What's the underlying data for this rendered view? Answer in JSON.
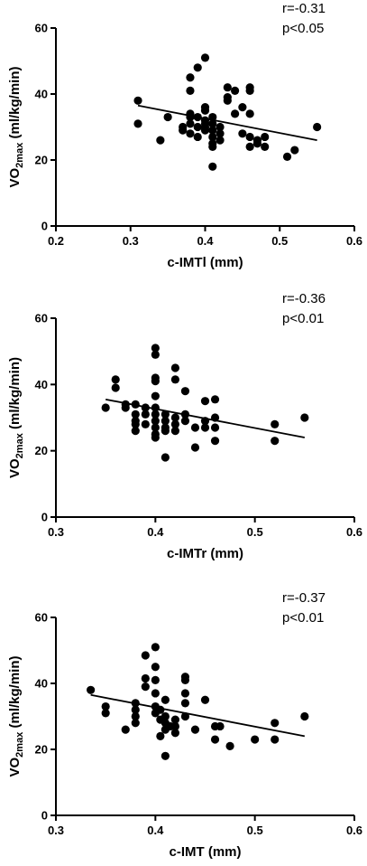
{
  "chart_data": [
    {
      "type": "scatter",
      "xlabel": "c-IMTl (mm)",
      "ylabel_base": "VO",
      "ylabel_sub": "2max",
      "ylabel_rest": " (ml/kg/min)",
      "xlim": [
        0.2,
        0.6
      ],
      "ylim": [
        0,
        60
      ],
      "xticks": [
        0.2,
        0.3,
        0.4,
        0.5,
        0.6
      ],
      "xtick_labels": [
        "0.2",
        "0.3",
        "0.4",
        "0.5",
        "0.6"
      ],
      "yticks": [
        0,
        20,
        40,
        60
      ],
      "ytick_labels": [
        "0",
        "20",
        "40",
        "60"
      ],
      "annotation": [
        "r=-0.31",
        "p<0.05"
      ],
      "fit_line": [
        [
          0.31,
          36.5
        ],
        [
          0.55,
          26.0
        ]
      ],
      "points": [
        [
          0.31,
          38
        ],
        [
          0.31,
          31
        ],
        [
          0.34,
          26
        ],
        [
          0.35,
          33
        ],
        [
          0.37,
          30
        ],
        [
          0.37,
          29
        ],
        [
          0.38,
          45
        ],
        [
          0.38,
          41
        ],
        [
          0.38,
          34
        ],
        [
          0.38,
          33
        ],
        [
          0.38,
          31
        ],
        [
          0.38,
          28
        ],
        [
          0.39,
          48
        ],
        [
          0.39,
          33
        ],
        [
          0.39,
          30
        ],
        [
          0.39,
          27
        ],
        [
          0.4,
          51
        ],
        [
          0.4,
          36
        ],
        [
          0.4,
          35
        ],
        [
          0.4,
          32
        ],
        [
          0.4,
          31
        ],
        [
          0.4,
          30
        ],
        [
          0.4,
          29
        ],
        [
          0.41,
          33
        ],
        [
          0.41,
          31
        ],
        [
          0.41,
          29
        ],
        [
          0.41,
          27
        ],
        [
          0.41,
          25
        ],
        [
          0.41,
          24
        ],
        [
          0.41,
          18
        ],
        [
          0.42,
          30
        ],
        [
          0.42,
          28
        ],
        [
          0.42,
          26
        ],
        [
          0.43,
          42
        ],
        [
          0.43,
          39
        ],
        [
          0.43,
          38
        ],
        [
          0.44,
          34
        ],
        [
          0.44,
          41
        ],
        [
          0.45,
          36
        ],
        [
          0.45,
          28
        ],
        [
          0.46,
          42
        ],
        [
          0.46,
          41
        ],
        [
          0.46,
          34
        ],
        [
          0.46,
          27
        ],
        [
          0.46,
          24
        ],
        [
          0.47,
          26
        ],
        [
          0.47,
          25
        ],
        [
          0.48,
          27
        ],
        [
          0.48,
          24
        ],
        [
          0.51,
          21
        ],
        [
          0.52,
          23
        ],
        [
          0.55,
          30
        ]
      ]
    },
    {
      "type": "scatter",
      "xlabel": "c-IMTr (mm)",
      "ylabel_base": "VO",
      "ylabel_sub": "2max",
      "ylabel_rest": " (ml/kg/min)",
      "xlim": [
        0.3,
        0.6
      ],
      "ylim": [
        0,
        60
      ],
      "xticks": [
        0.3,
        0.4,
        0.5,
        0.6
      ],
      "xtick_labels": [
        "0.3",
        "0.4",
        "0.5",
        "0.6"
      ],
      "yticks": [
        0,
        20,
        40,
        60
      ],
      "ytick_labels": [
        "0",
        "20",
        "40",
        "60"
      ],
      "annotation": [
        "r=-0.36",
        "p<0.01"
      ],
      "fit_line": [
        [
          0.35,
          35.5
        ],
        [
          0.55,
          24.0
        ]
      ],
      "points": [
        [
          0.35,
          33
        ],
        [
          0.36,
          41.5
        ],
        [
          0.36,
          39
        ],
        [
          0.37,
          34
        ],
        [
          0.37,
          33
        ],
        [
          0.38,
          34
        ],
        [
          0.38,
          31
        ],
        [
          0.38,
          29
        ],
        [
          0.38,
          28
        ],
        [
          0.38,
          26
        ],
        [
          0.39,
          33
        ],
        [
          0.39,
          31
        ],
        [
          0.39,
          28
        ],
        [
          0.4,
          51
        ],
        [
          0.4,
          49
        ],
        [
          0.4,
          42
        ],
        [
          0.4,
          41
        ],
        [
          0.4,
          36.5
        ],
        [
          0.4,
          33
        ],
        [
          0.4,
          31
        ],
        [
          0.4,
          29
        ],
        [
          0.4,
          27
        ],
        [
          0.4,
          25
        ],
        [
          0.4,
          24
        ],
        [
          0.41,
          31
        ],
        [
          0.41,
          29
        ],
        [
          0.41,
          27
        ],
        [
          0.41,
          26
        ],
        [
          0.41,
          18
        ],
        [
          0.42,
          45
        ],
        [
          0.42,
          41.5
        ],
        [
          0.42,
          30
        ],
        [
          0.42,
          28
        ],
        [
          0.42,
          26
        ],
        [
          0.43,
          38
        ],
        [
          0.43,
          31
        ],
        [
          0.43,
          29
        ],
        [
          0.44,
          27
        ],
        [
          0.44,
          21
        ],
        [
          0.45,
          35
        ],
        [
          0.45,
          29
        ],
        [
          0.45,
          27
        ],
        [
          0.46,
          35.5
        ],
        [
          0.46,
          30
        ],
        [
          0.46,
          27
        ],
        [
          0.46,
          23
        ],
        [
          0.52,
          28
        ],
        [
          0.52,
          23
        ],
        [
          0.55,
          30
        ]
      ]
    },
    {
      "type": "scatter",
      "xlabel": "c-IMT (mm)",
      "ylabel_base": "VO",
      "ylabel_sub": "2max",
      "ylabel_rest": " (ml/kg/min)",
      "xlim": [
        0.3,
        0.6
      ],
      "ylim": [
        0,
        60
      ],
      "xticks": [
        0.3,
        0.4,
        0.5,
        0.6
      ],
      "xtick_labels": [
        "0.3",
        "0.4",
        "0.5",
        "0.6"
      ],
      "yticks": [
        0,
        20,
        40,
        60
      ],
      "ytick_labels": [
        "0",
        "20",
        "40",
        "60"
      ],
      "annotation": [
        "r=-0.37",
        "p<0.01"
      ],
      "fit_line": [
        [
          0.335,
          36.5
        ],
        [
          0.55,
          24.0
        ]
      ],
      "points": [
        [
          0.335,
          38
        ],
        [
          0.35,
          33
        ],
        [
          0.35,
          31
        ],
        [
          0.37,
          26
        ],
        [
          0.38,
          34
        ],
        [
          0.38,
          32
        ],
        [
          0.38,
          30
        ],
        [
          0.38,
          28
        ],
        [
          0.39,
          48.5
        ],
        [
          0.39,
          41.5
        ],
        [
          0.39,
          39
        ],
        [
          0.4,
          51
        ],
        [
          0.4,
          45
        ],
        [
          0.4,
          41
        ],
        [
          0.4,
          37
        ],
        [
          0.4,
          33
        ],
        [
          0.4,
          31
        ],
        [
          0.405,
          32
        ],
        [
          0.405,
          29
        ],
        [
          0.405,
          24
        ],
        [
          0.41,
          35
        ],
        [
          0.41,
          30
        ],
        [
          0.41,
          28
        ],
        [
          0.41,
          26
        ],
        [
          0.41,
          18
        ],
        [
          0.415,
          27
        ],
        [
          0.42,
          29
        ],
        [
          0.42,
          27
        ],
        [
          0.42,
          25
        ],
        [
          0.43,
          42
        ],
        [
          0.43,
          41
        ],
        [
          0.43,
          37
        ],
        [
          0.43,
          34
        ],
        [
          0.43,
          30
        ],
        [
          0.44,
          26
        ],
        [
          0.45,
          35
        ],
        [
          0.46,
          27
        ],
        [
          0.46,
          23
        ],
        [
          0.465,
          27
        ],
        [
          0.475,
          21
        ],
        [
          0.5,
          23
        ],
        [
          0.52,
          28
        ],
        [
          0.52,
          23
        ],
        [
          0.55,
          30
        ]
      ]
    }
  ]
}
